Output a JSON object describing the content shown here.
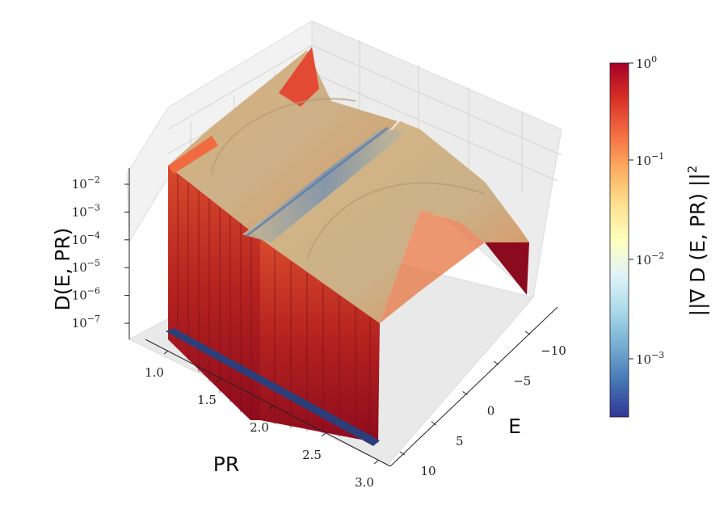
{
  "chart_data": {
    "type": "surface3d",
    "title": "",
    "xlabel": "E",
    "ylabel": "PR",
    "zlabel": "D(E, PR)",
    "x_ticks": [
      "10",
      "5",
      "0",
      "−5",
      "−10"
    ],
    "y_ticks": [
      "1.0",
      "1.5",
      "2.0",
      "2.5",
      "3.0"
    ],
    "z_ticks": [
      "10",
      "10",
      "10",
      "10",
      "10",
      "10"
    ],
    "z_tick_exponents": [
      "−2",
      "−3",
      "−4",
      "−5",
      "−6",
      "−7"
    ],
    "x_range": [
      -13,
      11
    ],
    "y_range": [
      0.9,
      3.2
    ],
    "z_scale": "log",
    "colorbar": {
      "label": "||∇ D (E, PR) ||",
      "label_exponent": "2",
      "scale": "log",
      "colormap": "RdYlBu_r",
      "ticks": [
        "10",
        "10",
        "10",
        "10"
      ],
      "tick_exponents": [
        "0",
        "−1",
        "−2",
        "−3"
      ],
      "colors": [
        "#a50026",
        "#d73027",
        "#f46d43",
        "#fdae61",
        "#fee090",
        "#ffffbf",
        "#e0f3f8",
        "#abd9e9",
        "#74add1",
        "#4575b4",
        "#313695"
      ]
    }
  }
}
